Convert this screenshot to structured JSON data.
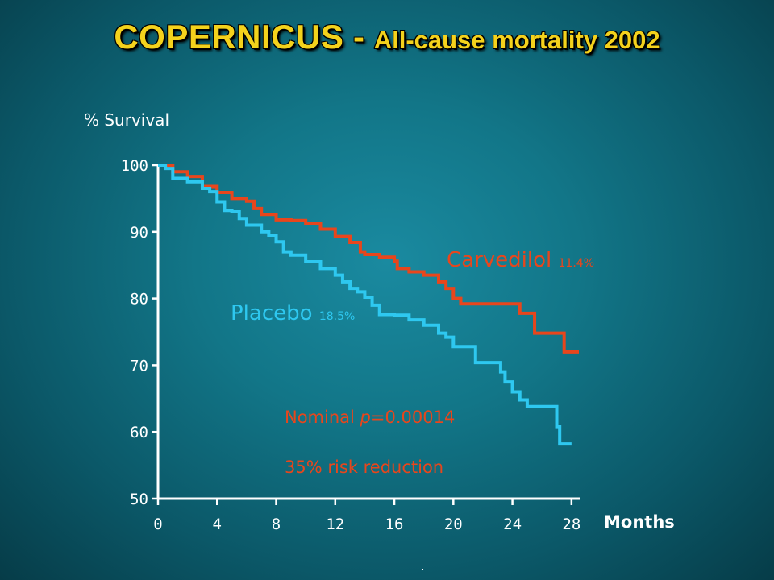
{
  "title": {
    "main": "COPERNICUS",
    "separator": " - ",
    "sub": "All-cause mortality 2002"
  },
  "annotations": {
    "carvedilol_name": "Carvedilol",
    "carvedilol_pct": "11.4%",
    "placebo_name": "Placebo",
    "placebo_pct": "18.5%",
    "pvalue_prefix": "Nominal ",
    "pvalue_p": "p",
    "pvalue_rest": "=0.00014",
    "risk_reduction": "35% risk reduction"
  },
  "colors": {
    "carvedilol": "#e8461c",
    "placebo": "#2ec8f0",
    "title": "#f4d21c",
    "axis": "#ffffff"
  },
  "chart_data": {
    "type": "line",
    "title": "COPERNICUS - All-cause mortality 2002",
    "xlabel": "Months",
    "ylabel": "% Survival",
    "xlim": [
      0,
      28.5
    ],
    "ylim": [
      50,
      100
    ],
    "xticks": [
      0,
      4,
      8,
      12,
      16,
      20,
      24,
      28
    ],
    "yticks": [
      50,
      60,
      70,
      80,
      90,
      100
    ],
    "grid": false,
    "series": [
      {
        "name": "Carvedilol",
        "step": true,
        "x": [
          0,
          1,
          2,
          3,
          4,
          5,
          6,
          6.5,
          7,
          8,
          9,
          10,
          11,
          12,
          13,
          13.7,
          14,
          15,
          16,
          16.2,
          17,
          18,
          19,
          19.5,
          20,
          20.5,
          22,
          22.5,
          23,
          24,
          24.5,
          25,
          25.5,
          26,
          27,
          27.5,
          28.5
        ],
        "y": [
          100,
          99,
          98.3,
          96.8,
          95.9,
          95,
          94.6,
          93.5,
          92.6,
          91.8,
          91.7,
          91.3,
          90.4,
          89.3,
          88.4,
          87,
          86.6,
          86.2,
          85.6,
          84.5,
          84,
          83.5,
          82.5,
          81.5,
          80,
          79.2,
          79.2,
          79.2,
          79.2,
          79.2,
          77.8,
          77.8,
          74.8,
          74.8,
          74.8,
          72,
          72
        ]
      },
      {
        "name": "Placebo",
        "step": true,
        "x": [
          0,
          0.5,
          1,
          2,
          3,
          3.5,
          4,
          4.5,
          5,
          5.5,
          6,
          7,
          7.5,
          8,
          8.5,
          9,
          10,
          11,
          12,
          12.5,
          13,
          13.5,
          14,
          14.5,
          15,
          16,
          17,
          18,
          19,
          19.5,
          20,
          21,
          21.5,
          22,
          23,
          23.2,
          23.5,
          24,
          24.5,
          25,
          26,
          26.5,
          27,
          27.2,
          27.5,
          28
        ],
        "y": [
          100,
          99.5,
          98,
          97.5,
          96.5,
          96,
          94.5,
          93.2,
          93,
          92,
          91,
          90,
          89.5,
          88.5,
          87,
          86.5,
          85.5,
          84.5,
          83.5,
          82.5,
          81.5,
          81,
          80.2,
          79,
          77.6,
          77.5,
          76.8,
          76,
          74.8,
          74.2,
          72.8,
          72.8,
          70.4,
          70.4,
          70.4,
          69,
          67.5,
          66,
          64.8,
          63.8,
          63.8,
          63.8,
          60.8,
          58.2,
          58.2,
          58.2
        ]
      }
    ],
    "end_labels": {
      "Carvedilol": "11.4%",
      "Placebo": "18.5%"
    }
  }
}
